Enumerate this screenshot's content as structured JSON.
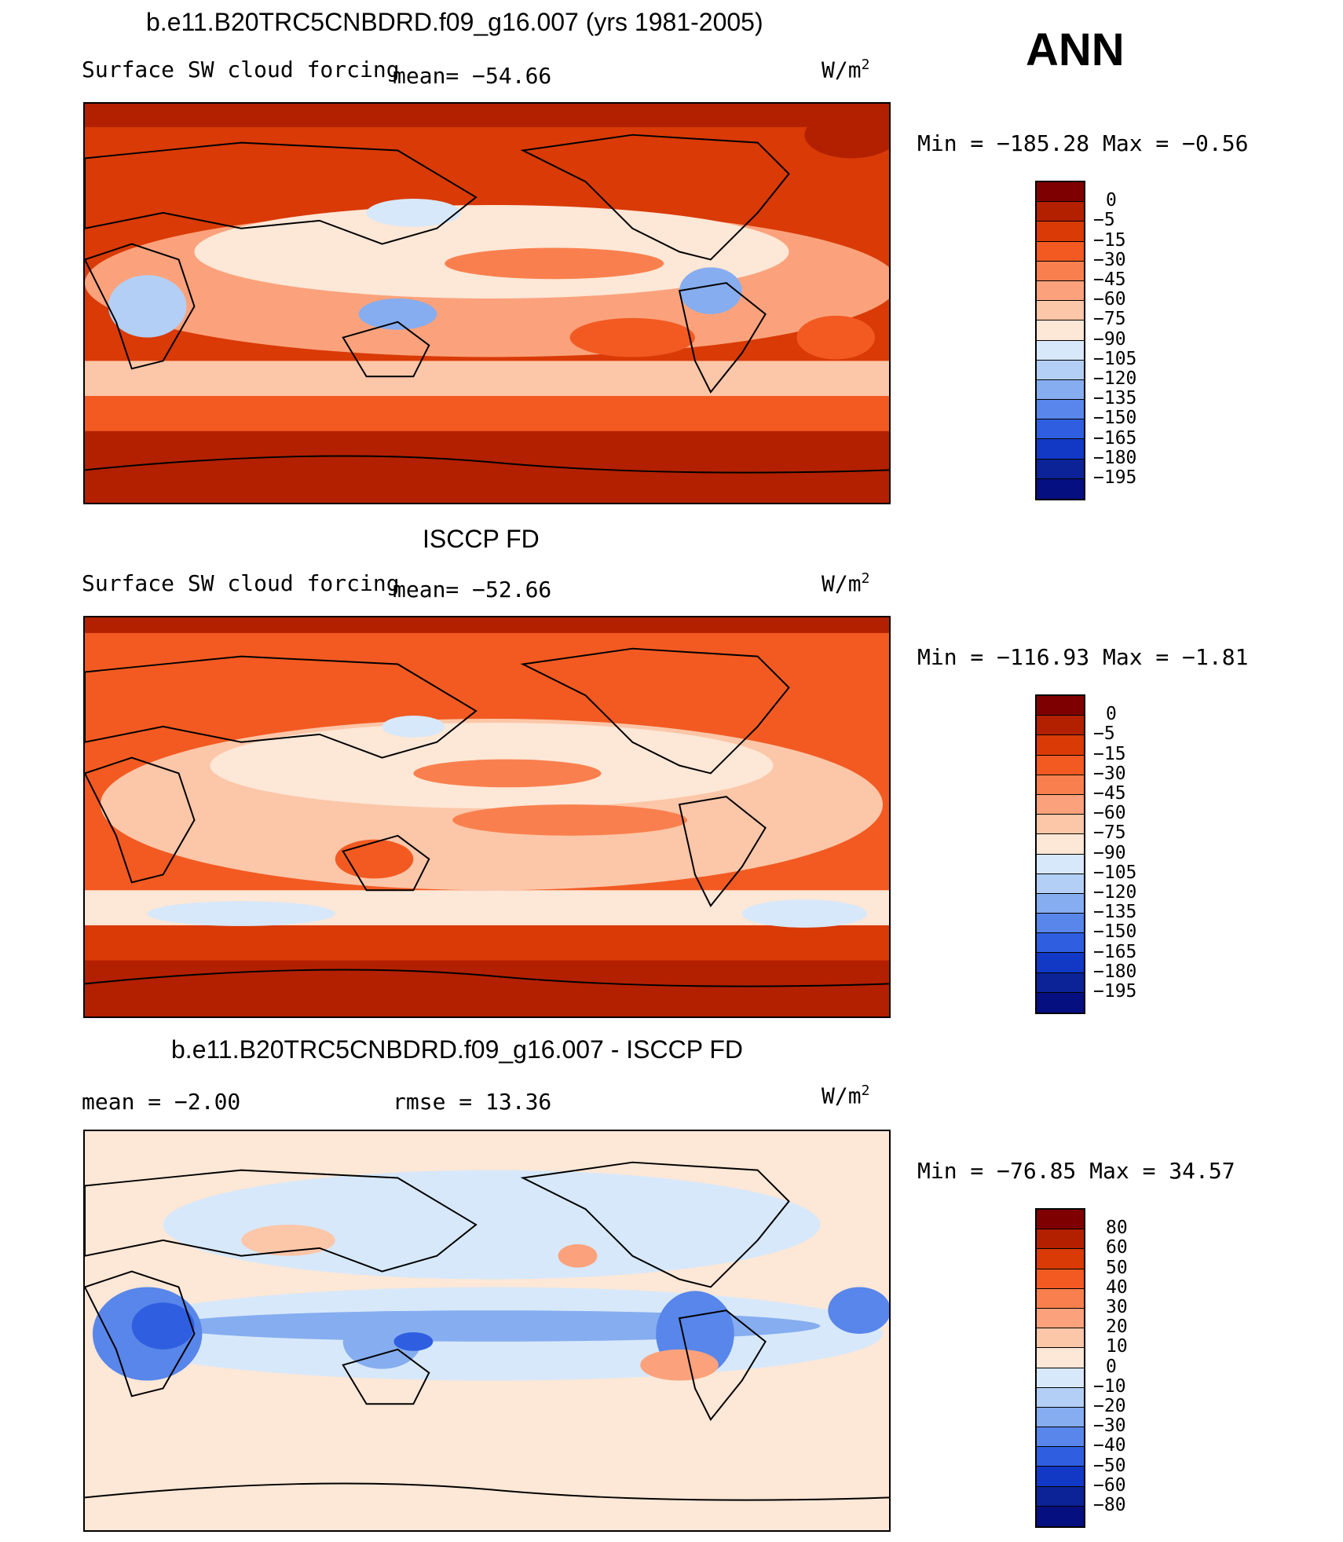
{
  "season": "ANN",
  "panels": [
    {
      "title": "b.e11.B20TRC5CNBDRD.f09_g16.007 (yrs 1981-2005)",
      "left_label": "Surface SW cloud forcing",
      "mid_label": "mean=  −54.66",
      "units_base": "W/m",
      "units_exp": "2",
      "min_max": "Min  =  −185.28  Max  =    −0.56",
      "colorbar_labels": [
        "0",
        "−5",
        "−15",
        "−30",
        "−45",
        "−60",
        "−75",
        "−90",
        "−105",
        "−120",
        "−135",
        "−150",
        "−165",
        "−180",
        "−195"
      ]
    },
    {
      "title": "ISCCP FD",
      "left_label": "Surface SW cloud forcing",
      "mid_label": "mean=  −52.66",
      "units_base": "W/m",
      "units_exp": "2",
      "min_max": "Min  =  −116.93  Max  =    −1.81",
      "colorbar_labels": [
        "0",
        "−5",
        "−15",
        "−30",
        "−45",
        "−60",
        "−75",
        "−90",
        "−105",
        "−120",
        "−135",
        "−150",
        "−165",
        "−180",
        "−195"
      ]
    },
    {
      "title": "b.e11.B20TRC5CNBDRD.f09_g16.007 - ISCCP FD",
      "left_label": "mean  =   −2.00",
      "mid_label": "rmse  =   13.36",
      "units_base": "W/m",
      "units_exp": "2",
      "min_max": "Min  =  −76.85  Max  =    34.57",
      "colorbar_labels": [
        "80",
        "60",
        "50",
        "40",
        "30",
        "20",
        "10",
        "0",
        "−10",
        "−20",
        "−30",
        "−40",
        "−50",
        "−60",
        "−80"
      ]
    }
  ],
  "colors": {
    "swatches": [
      "#7f0000",
      "#b22000",
      "#d93a06",
      "#f25a22",
      "#f9804e",
      "#fba27c",
      "#fcc6a8",
      "#fde7d6",
      "#d7e8fa",
      "#b3cff6",
      "#86adef",
      "#5886ea",
      "#2f5fe0",
      "#1238c6",
      "#0b2396",
      "#050f80"
    ],
    "coast": "#000000"
  }
}
